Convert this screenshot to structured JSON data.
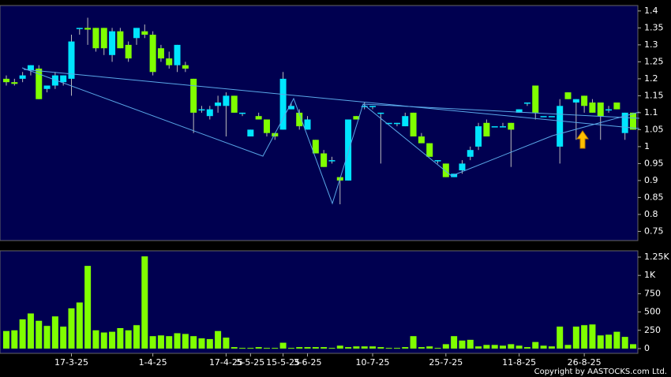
{
  "chart_data": {
    "type": "candlestick",
    "categories": [
      null,
      null,
      null,
      null,
      null,
      null,
      null,
      null,
      "17-3-25",
      null,
      null,
      null,
      null,
      null,
      null,
      null,
      null,
      null,
      "1-4-25",
      null,
      null,
      null,
      null,
      null,
      null,
      null,
      null,
      "17-4-25",
      null,
      null,
      "5-5-25",
      null,
      null,
      null,
      "15-5-25",
      null,
      null,
      "3-6-25",
      null,
      null,
      null,
      null,
      null,
      null,
      null,
      "10-7-25",
      null,
      null,
      null,
      null,
      null,
      null,
      null,
      null,
      "25-7-25",
      null,
      null,
      null,
      null,
      null,
      null,
      null,
      null,
      "11-8-25",
      null,
      null,
      null,
      null,
      null,
      null,
      null,
      "26-8-25",
      null,
      null,
      null,
      null,
      null,
      null
    ],
    "open": [
      1.2,
      1.19,
      1.2,
      1.225,
      1.23,
      1.17,
      1.18,
      1.19,
      1.2,
      1.35,
      1.35,
      1.35,
      1.35,
      1.27,
      1.34,
      1.3,
      1.32,
      1.34,
      1.33,
      1.29,
      1.26,
      1.24,
      1.24,
      1.2,
      1.11,
      1.09,
      1.12,
      1.12,
      1.15,
      1.1,
      1.03,
      1.09,
      1.08,
      1.04,
      1.05,
      1.11,
      1.1,
      1.05,
      1.02,
      0.98,
      0.96,
      0.91,
      0.9,
      1.09,
      1.12,
      1.12,
      1.1,
      1.07,
      1.07,
      1.06,
      1.1,
      1.03,
      1.01,
      0.96,
      0.95,
      0.91,
      0.93,
      0.97,
      1.0,
      1.07,
      1.06,
      1.06,
      1.07,
      1.1,
      1.13,
      1.18,
      1.09,
      1.09,
      1.0,
      1.16,
      1.13,
      1.15,
      1.13,
      1.13,
      1.11,
      1.13,
      1.04,
      1.1
    ],
    "high": [
      1.21,
      1.2,
      1.22,
      1.24,
      1.24,
      1.18,
      1.22,
      1.21,
      1.33,
      1.35,
      1.38,
      1.35,
      1.35,
      1.35,
      1.35,
      1.31,
      1.35,
      1.36,
      1.34,
      1.3,
      1.28,
      1.3,
      1.25,
      1.2,
      1.12,
      1.12,
      1.15,
      1.16,
      1.15,
      1.1,
      1.05,
      1.1,
      1.08,
      1.04,
      1.22,
      1.13,
      1.11,
      1.09,
      1.02,
      0.99,
      0.97,
      0.91,
      1.08,
      1.09,
      1.13,
      1.12,
      1.1,
      1.07,
      1.07,
      1.1,
      1.1,
      1.04,
      1.01,
      0.96,
      0.95,
      0.92,
      0.96,
      1.0,
      1.07,
      1.08,
      1.06,
      1.07,
      1.07,
      1.11,
      1.13,
      1.18,
      1.09,
      1.09,
      1.14,
      1.16,
      1.14,
      1.15,
      1.14,
      1.13,
      1.12,
      1.13,
      1.1,
      1.1
    ],
    "low": [
      1.18,
      1.18,
      1.19,
      1.21,
      1.14,
      1.16,
      1.17,
      1.18,
      1.15,
      1.33,
      1.3,
      1.28,
      1.27,
      1.25,
      1.29,
      1.25,
      1.3,
      1.32,
      1.21,
      1.25,
      1.23,
      1.22,
      1.22,
      1.04,
      1.1,
      1.08,
      1.1,
      1.03,
      1.1,
      1.09,
      1.03,
      1.08,
      1.03,
      1.02,
      1.05,
      1.11,
      1.05,
      1.05,
      0.98,
      0.94,
      0.95,
      0.83,
      0.9,
      1.08,
      1.11,
      1.11,
      0.95,
      1.07,
      1.06,
      1.06,
      1.03,
      1.01,
      0.97,
      0.95,
      0.91,
      0.91,
      0.92,
      0.96,
      0.99,
      1.03,
      1.06,
      1.06,
      0.94,
      1.1,
      1.12,
      1.08,
      1.09,
      1.09,
      0.95,
      1.14,
      1.02,
      1.1,
      1.1,
      1.02,
      1.1,
      1.11,
      1.02,
      1.05
    ],
    "close": [
      1.19,
      1.185,
      1.21,
      1.24,
      1.14,
      1.18,
      1.21,
      1.21,
      1.31,
      1.35,
      1.345,
      1.29,
      1.29,
      1.34,
      1.29,
      1.26,
      1.35,
      1.33,
      1.22,
      1.26,
      1.24,
      1.3,
      1.23,
      1.1,
      1.11,
      1.11,
      1.13,
      1.15,
      1.1,
      1.1,
      1.05,
      1.08,
      1.04,
      1.03,
      1.2,
      1.12,
      1.06,
      1.08,
      0.98,
      0.94,
      0.96,
      0.9,
      1.08,
      1.08,
      1.12,
      1.12,
      1.1,
      1.07,
      1.07,
      1.09,
      1.03,
      1.01,
      0.97,
      0.96,
      0.91,
      0.92,
      0.95,
      0.99,
      1.06,
      1.03,
      1.06,
      1.06,
      1.05,
      1.11,
      1.13,
      1.1,
      1.09,
      1.09,
      1.12,
      1.14,
      1.14,
      1.12,
      1.1,
      1.09,
      1.11,
      1.11,
      1.1,
      1.05
    ],
    "volume": [
      240,
      250,
      400,
      480,
      380,
      310,
      440,
      300,
      550,
      630,
      1130,
      250,
      220,
      230,
      280,
      250,
      320,
      1260,
      170,
      180,
      170,
      210,
      200,
      170,
      140,
      130,
      240,
      150,
      20,
      10,
      10,
      20,
      10,
      10,
      80,
      10,
      20,
      20,
      20,
      20,
      10,
      40,
      20,
      30,
      30,
      30,
      20,
      10,
      10,
      20,
      170,
      20,
      30,
      10,
      60,
      170,
      110,
      120,
      30,
      50,
      50,
      40,
      60,
      40,
      20,
      90,
      40,
      30,
      300,
      50,
      300,
      320,
      330,
      180,
      190,
      230,
      160,
      60
    ],
    "up_color": "#00e5ff",
    "down_color": "#80ff00",
    "volume_color": "#80ff00",
    "ylim": [
      0.723,
      1.416
    ],
    "yticks": [
      0.75,
      0.8,
      0.85,
      0.9,
      0.95,
      1,
      1.05,
      1.1,
      1.15,
      1.2,
      1.25,
      1.3,
      1.35,
      1.4
    ],
    "y2lim": [
      -65,
      1336
    ],
    "y2ticks": [
      0,
      250,
      500,
      750,
      {
        "value": 1000,
        "label": "1K"
      },
      {
        "value": 1250,
        "label": "1.25K"
      }
    ],
    "copyright": "Copyright by AASTOCKS.com Ltd."
  }
}
